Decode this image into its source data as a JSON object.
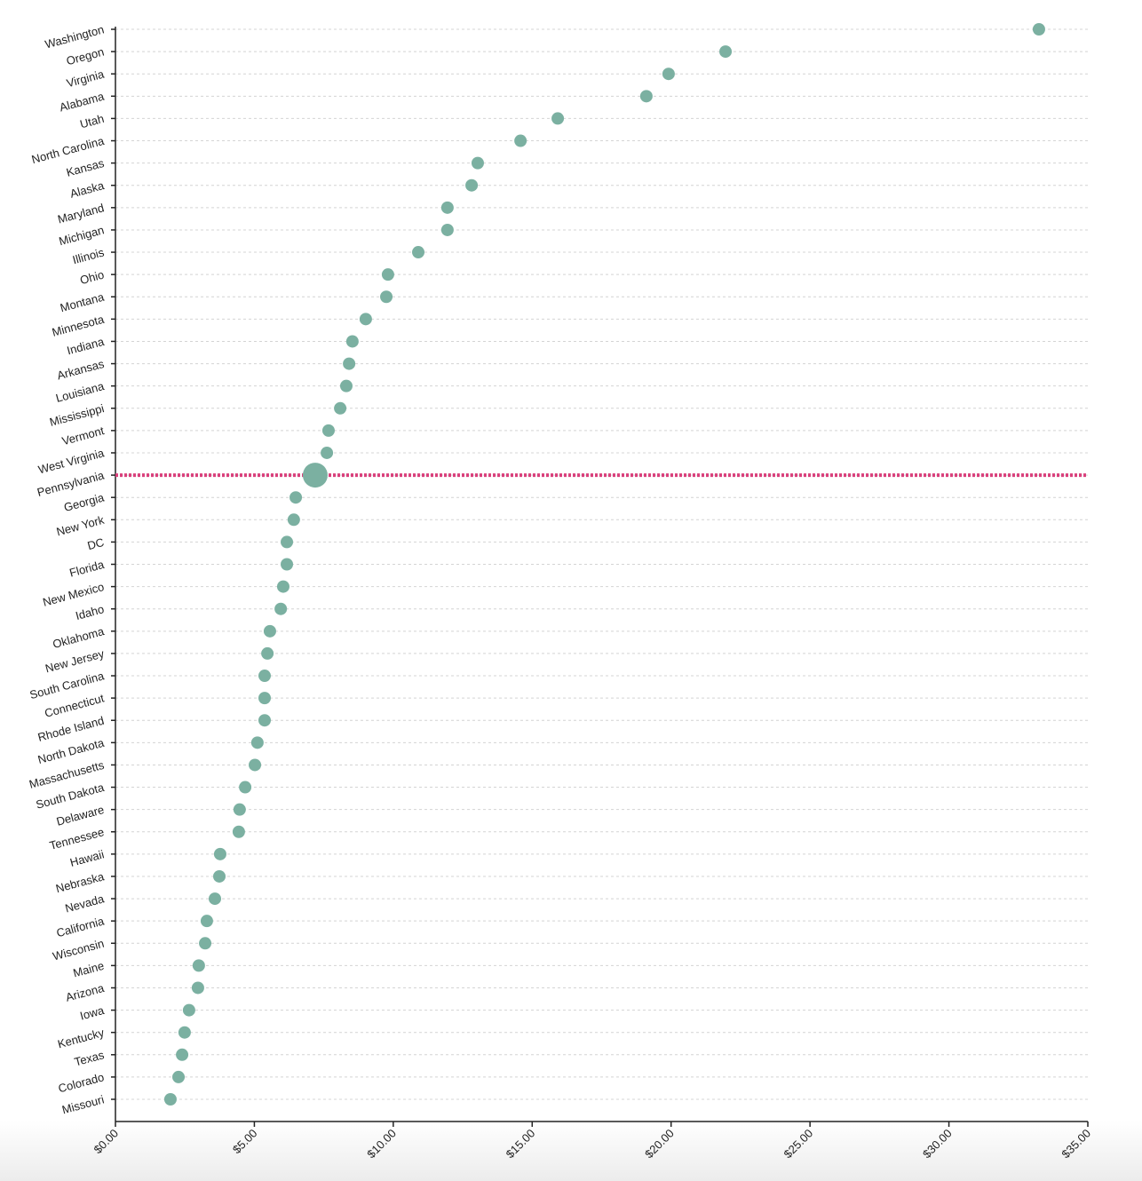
{
  "chart_data": {
    "type": "dot",
    "categories": [
      "Washington",
      "Oregon",
      "Virginia",
      "Alabama",
      "Utah",
      "North Carolina",
      "Kansas",
      "Alaska",
      "Maryland",
      "Michigan",
      "Illinois",
      "Ohio",
      "Montana",
      "Minnesota",
      "Indiana",
      "Arkansas",
      "Louisiana",
      "Mississippi",
      "Vermont",
      "West Virginia",
      "Pennsylvania",
      "Georgia",
      "New York",
      "DC",
      "Florida",
      "New Mexico",
      "Idaho",
      "Oklahoma",
      "New Jersey",
      "South Carolina",
      "Connecticut",
      "Rhode Island",
      "North Dakota",
      "Massachusetts",
      "South Dakota",
      "Delaware",
      "Tennessee",
      "Hawaii",
      "Nebraska",
      "Nevada",
      "California",
      "Wisconsin",
      "Maine",
      "Arizona",
      "Iowa",
      "Kentucky",
      "Texas",
      "Colorado",
      "Missouri"
    ],
    "values": [
      33.24,
      21.96,
      19.91,
      19.11,
      15.92,
      14.58,
      13.04,
      12.82,
      11.95,
      11.95,
      10.9,
      9.81,
      9.75,
      9.01,
      8.53,
      8.41,
      8.31,
      8.09,
      7.67,
      7.61,
      7.19,
      6.49,
      6.42,
      6.17,
      6.17,
      6.04,
      5.95,
      5.56,
      5.47,
      5.37,
      5.37,
      5.37,
      5.11,
      5.02,
      4.67,
      4.47,
      4.44,
      3.77,
      3.74,
      3.58,
      3.29,
      3.23,
      3.0,
      2.97,
      2.65,
      2.49,
      2.4,
      2.27,
      1.98
    ],
    "color": "#7bb0a1",
    "highlight": "Pennsylvania",
    "highlight_color": "#d9407c",
    "xlim": [
      0,
      35
    ],
    "xticks": [
      {
        "value": 0,
        "label": "$0.00"
      },
      {
        "value": 5,
        "label": "$5.00"
      },
      {
        "value": 10,
        "label": "$10.00"
      },
      {
        "value": 15,
        "label": "$15.00"
      },
      {
        "value": 20,
        "label": "$20.00"
      },
      {
        "value": 25,
        "label": "$25.00"
      },
      {
        "value": 30,
        "label": "$30.00"
      },
      {
        "value": 35,
        "label": "$35.00"
      }
    ],
    "grid": true
  }
}
